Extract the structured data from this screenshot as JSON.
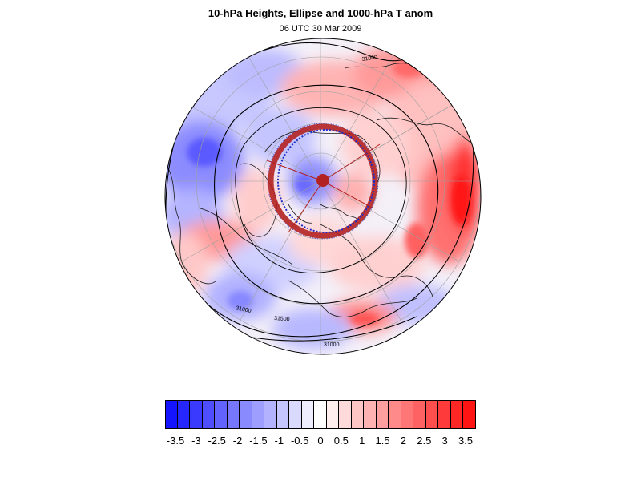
{
  "title": "10-hPa Heights, Ellipse and 1000-hPa T anom",
  "subtitle": "06 UTC 30 Mar 2009",
  "colorbar": {
    "colors": [
      "#1414ff",
      "#2626ff",
      "#3a3aff",
      "#4e4eff",
      "#6262ff",
      "#7676ff",
      "#8a8aff",
      "#9e9eff",
      "#b2b2ff",
      "#c6c6ff",
      "#dadaff",
      "#eeeeff",
      "#ffffff",
      "#ffeeee",
      "#ffdada",
      "#ffc6c6",
      "#ffb2b2",
      "#ff9e9e",
      "#ff8a8a",
      "#ff7676",
      "#ff6262",
      "#ff4e4e",
      "#ff3a3a",
      "#ff2626",
      "#ff1414"
    ],
    "labels": [
      "-3.5",
      "-3",
      "-2.5",
      "-2",
      "-1.5",
      "-1",
      "-0.5",
      "0",
      "0.5",
      "1",
      "1.5",
      "2",
      "2.5",
      "3",
      "3.5"
    ]
  },
  "contour_labels": [
    "31000",
    "31000",
    "31000",
    "31500"
  ],
  "colors": {
    "ellipse": "#b22222",
    "ellipse_inner": "#1e2cc8",
    "contour": "#000000",
    "coast": "#1a1a1a"
  }
}
